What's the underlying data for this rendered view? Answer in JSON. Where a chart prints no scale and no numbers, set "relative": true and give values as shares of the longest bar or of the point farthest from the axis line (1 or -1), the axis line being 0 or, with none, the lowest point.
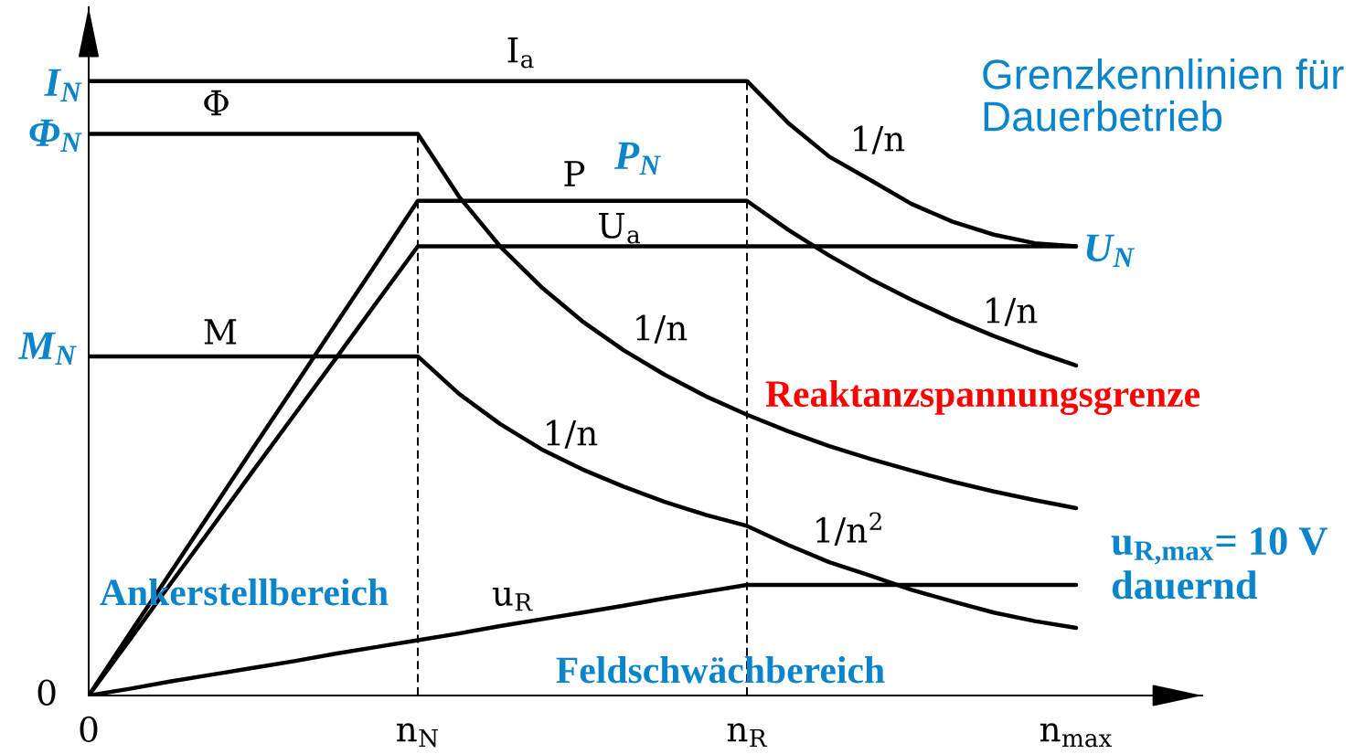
{
  "chart_data": {
    "type": "line",
    "title": "Grenzkennlinien für Dauerbetrieb",
    "relative": true,
    "categories": [
      "0",
      null,
      null,
      null,
      null,
      null,
      null,
      null,
      "n$_{N}$",
      null,
      null,
      null,
      null,
      null,
      null,
      null,
      "n$_{R}$",
      null,
      null,
      null,
      null,
      null,
      null,
      null,
      "n$_{max}$"
    ],
    "series": [
      {
        "name": "I$_{a}$",
        "color": "#000000",
        "values": [
          1.0,
          1.0,
          1.0,
          1.0,
          1.0,
          1.0,
          1.0,
          1.0,
          1.0,
          1.0,
          1.0,
          1.0,
          1.0,
          1.0,
          1.0,
          1.0,
          1.0,
          0.932,
          0.877,
          0.839,
          0.8,
          0.771,
          0.75,
          0.736,
          0.731
        ]
      },
      {
        "name": "Φ",
        "color": "#000000",
        "values": [
          0.914,
          0.914,
          0.914,
          0.914,
          0.914,
          0.914,
          0.914,
          0.914,
          0.914,
          0.812,
          0.731,
          0.665,
          0.609,
          0.562,
          0.522,
          0.487,
          0.457,
          0.43,
          0.406,
          0.385,
          0.366,
          0.348,
          0.332,
          0.318,
          0.305
        ]
      },
      {
        "name": "P",
        "color": "#000000",
        "values": [
          0,
          0.101,
          0.201,
          0.302,
          0.403,
          0.503,
          0.604,
          0.704,
          0.805,
          0.805,
          0.805,
          0.805,
          0.805,
          0.805,
          0.805,
          0.805,
          0.805,
          0.758,
          0.716,
          0.678,
          0.644,
          0.613,
          0.585,
          0.56,
          0.537
        ]
      },
      {
        "name": "U$_{a}$",
        "color": "#000000",
        "values": [
          0,
          0.091,
          0.183,
          0.274,
          0.366,
          0.457,
          0.548,
          0.64,
          0.731,
          0.731,
          0.731,
          0.731,
          0.731,
          0.731,
          0.731,
          0.731,
          0.731,
          0.731,
          0.731,
          0.731,
          0.731,
          0.731,
          0.731,
          0.731,
          0.731
        ]
      },
      {
        "name": "M",
        "color": "#000000",
        "values": [
          0.552,
          0.552,
          0.552,
          0.552,
          0.552,
          0.552,
          0.552,
          0.552,
          0.552,
          0.491,
          0.442,
          0.401,
          0.368,
          0.34,
          0.315,
          0.294,
          0.276,
          0.245,
          0.217,
          0.195,
          0.172,
          0.153,
          0.135,
          0.121,
          0.11
        ]
      },
      {
        "name": "u$_{R}$",
        "color": "#000000",
        "values": [
          0,
          0.011,
          0.023,
          0.034,
          0.045,
          0.056,
          0.068,
          0.079,
          0.09,
          0.101,
          0.113,
          0.124,
          0.135,
          0.146,
          0.158,
          0.169,
          0.18,
          0.18,
          0.18,
          0.18,
          0.18,
          0.18,
          0.18,
          0.18,
          0.18
        ]
      }
    ],
    "ref_lines": [
      {
        "axis": "x",
        "value": "n$_{N}$",
        "color": "#000000",
        "line_style": "dashed"
      },
      {
        "axis": "x",
        "value": "n$_{R}$",
        "color": "#000000",
        "line_style": "dashed"
      }
    ],
    "annotations": [
      {
        "text": "P$_{N}$",
        "y": 0.805
      },
      "I$_{N}$",
      "Φ$_{N}$",
      "M$_{N}$",
      "0",
      "U$_{N}$",
      "u$_{R,max}$= 10 V\ndauernd",
      "1/n",
      "1/n",
      "1/n",
      "1/n",
      "1/n$^{2}$",
      "Reaktanzspannungsgrenze",
      "Ankerstellbereich",
      "Feldschwächbereich"
    ]
  }
}
